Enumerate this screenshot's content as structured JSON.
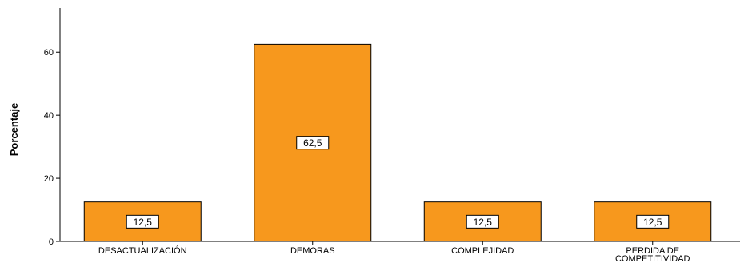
{
  "chart_data": {
    "type": "bar",
    "categories": [
      "DESACTUALIZACIÓN",
      "DEMORAS",
      "COMPLEJIDAD",
      "PERDIDA DE COMPETITIVIDAD"
    ],
    "category_lines": [
      [
        "DESACTUALIZACIÓN"
      ],
      [
        "DEMORAS"
      ],
      [
        "COMPLEJIDAD"
      ],
      [
        "PERDIDA DE",
        "COMPETITIVIDAD"
      ]
    ],
    "values": [
      12.5,
      62.5,
      12.5,
      12.5
    ],
    "value_labels": [
      "12,5",
      "62,5",
      "12,5",
      "12,5"
    ],
    "title": "",
    "xlabel": "",
    "ylabel": "Porcentaje",
    "ylim": [
      0,
      74
    ],
    "yticks": [
      0,
      20,
      40,
      60
    ],
    "grid": false,
    "legend": "none",
    "colors": {
      "bar_fill": "#F7981D",
      "bar_stroke": "#000000",
      "label_box_fill": "#ffffff"
    }
  }
}
